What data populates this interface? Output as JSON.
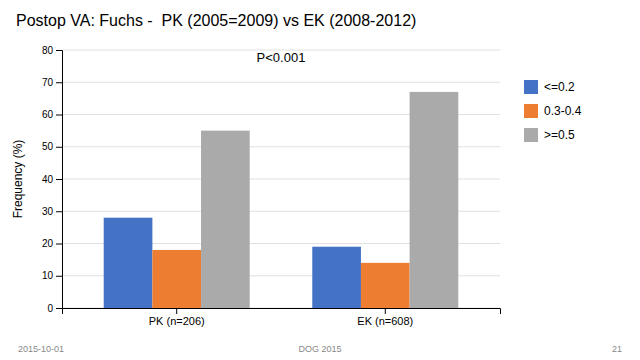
{
  "chart_data": {
    "type": "bar",
    "title": "Postop VA: Fuchs -  PK (2005=2009) vs EK (2008-2012)",
    "categories": [
      "PK (n=206)",
      "EK (n=608)"
    ],
    "series": [
      {
        "name": "<=0.2",
        "color": "#4472C4",
        "values": [
          28,
          19
        ]
      },
      {
        "name": "0.3-0.4",
        "color": "#ED7D31",
        "values": [
          18,
          14
        ]
      },
      {
        "name": ">=0.5",
        "color": "#AAAAAA",
        "values": [
          55,
          67
        ]
      }
    ],
    "ylabel": "Frequency (%)",
    "ylim": [
      0,
      80
    ],
    "yticks": [
      0,
      10,
      20,
      30,
      40,
      50,
      60,
      70,
      80
    ],
    "annotation": "P<0.001",
    "footer": [
      "2015-10-01",
      "DOG 2015",
      "21"
    ],
    "grid": true,
    "legend": "right"
  }
}
